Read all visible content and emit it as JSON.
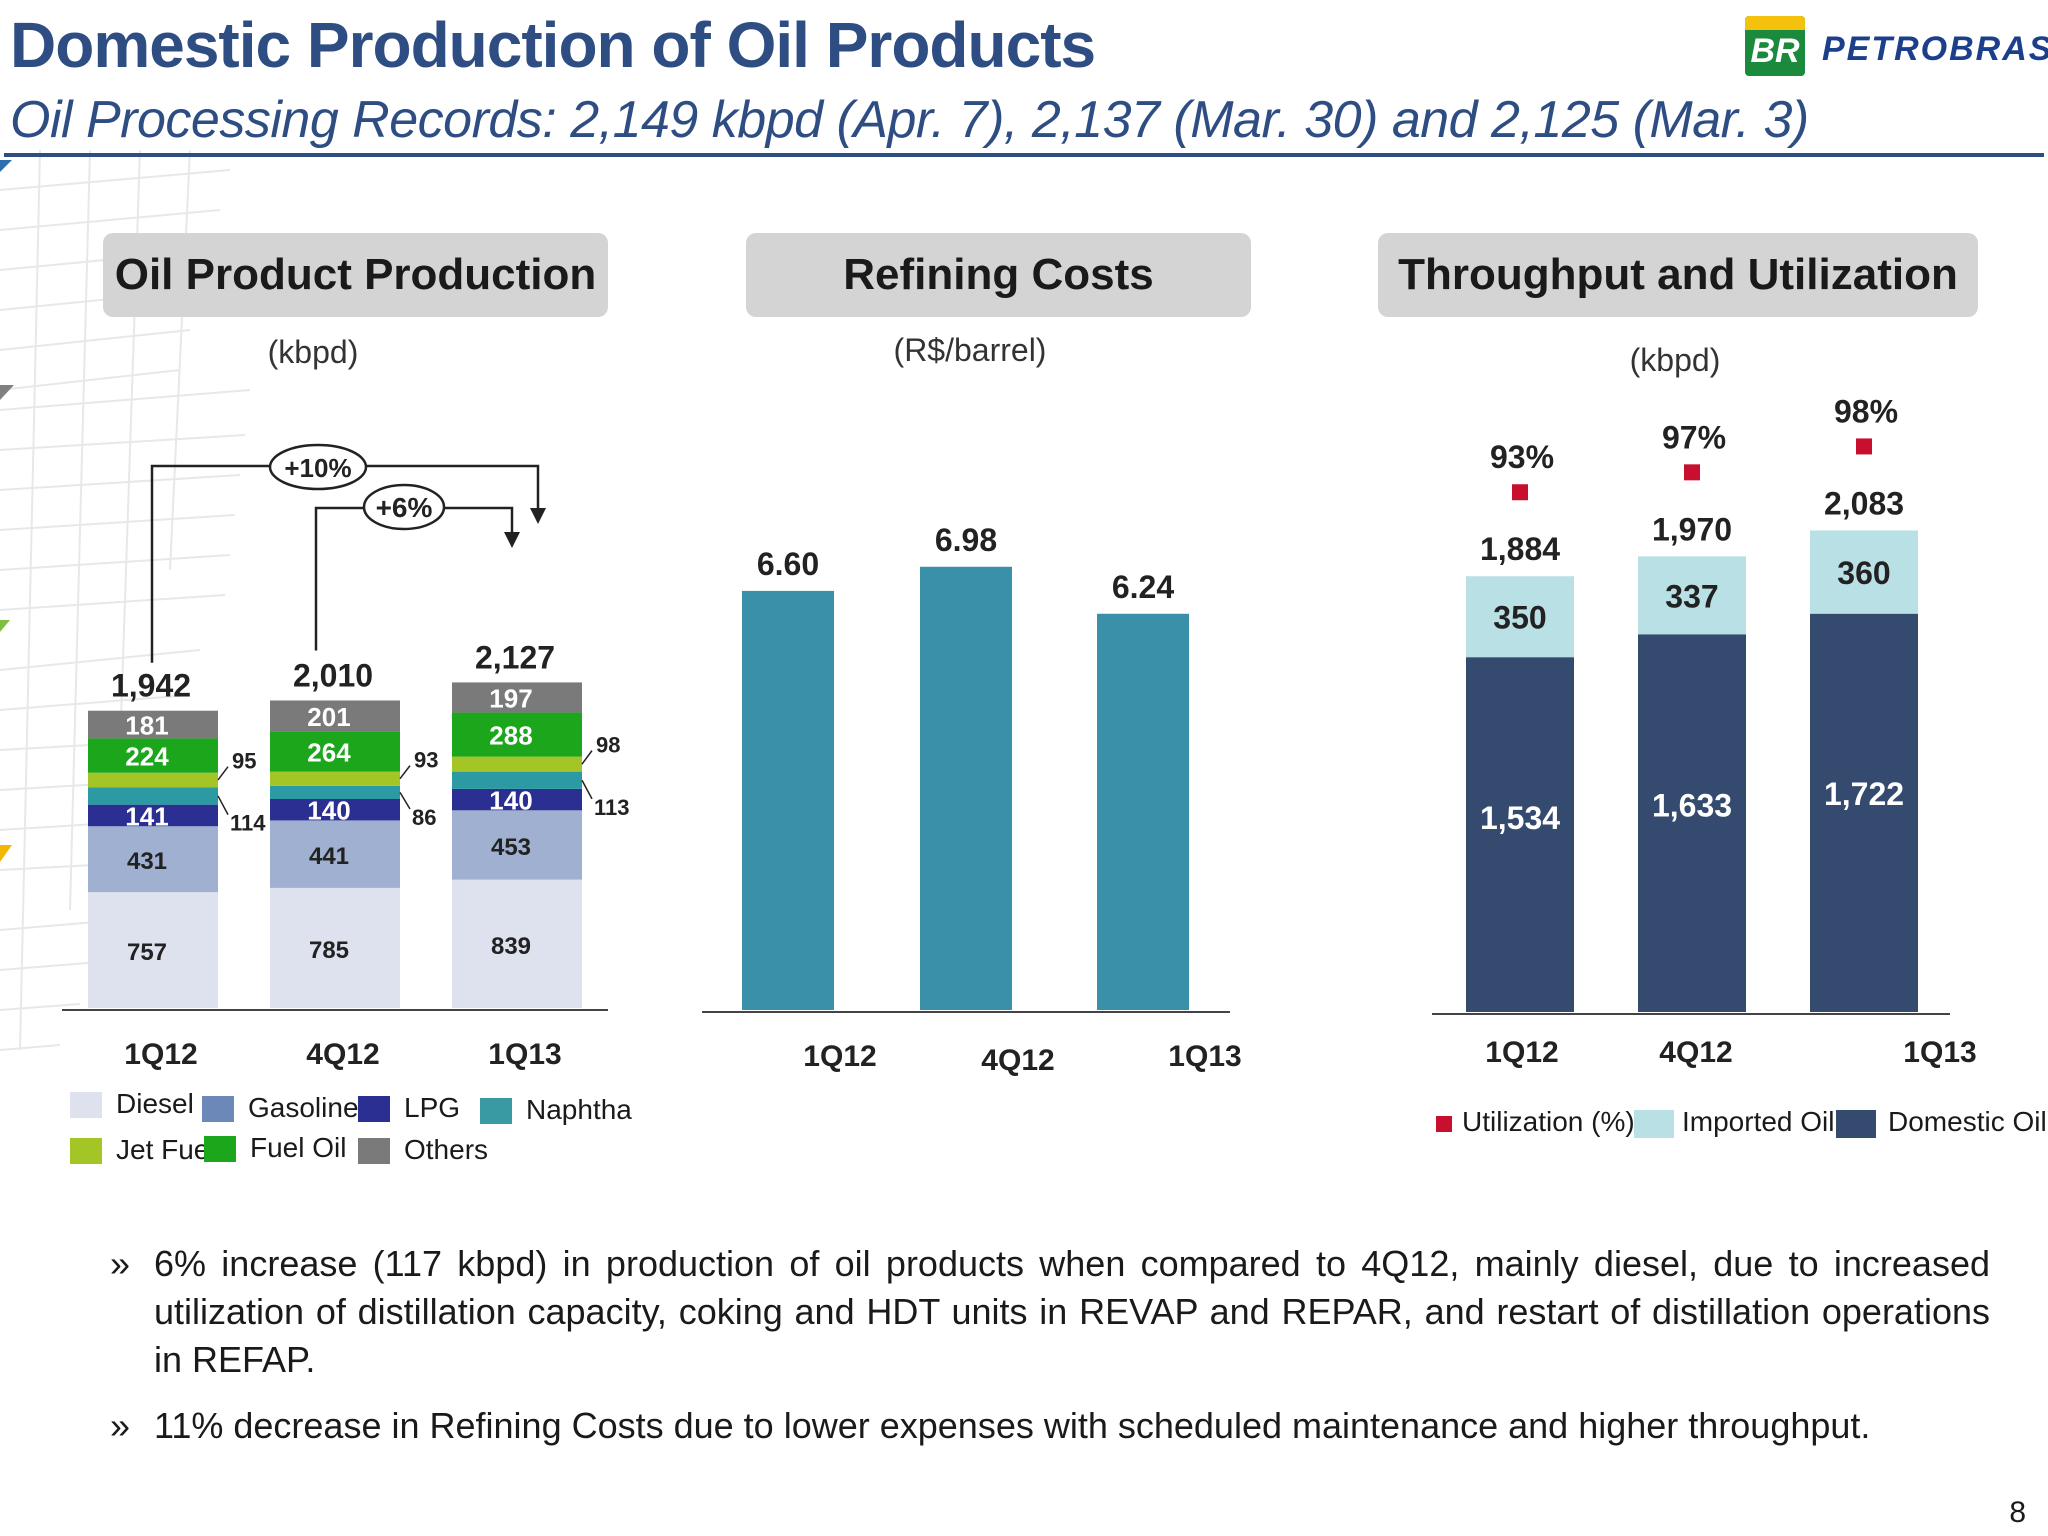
{
  "header": {
    "title": "Domestic Production of Oil Products",
    "subtitle": "Oil Processing Records: 2,149 kbpd (Apr. 7), 2,137 (Mar. 30) and 2,125 (Mar. 3)",
    "logo_mark": "BR",
    "logo_text": "PETROBRAS"
  },
  "panels": [
    {
      "title": "Oil Product Production",
      "unit": "(kbpd)"
    },
    {
      "title": "Refining Costs",
      "unit": "(R$/barrel)"
    },
    {
      "title": "Throughput and Utilization",
      "unit": "(kbpd)"
    }
  ],
  "chart_data": [
    {
      "type": "bar",
      "stacked": true,
      "categories": [
        "1Q12",
        "4Q12",
        "1Q13"
      ],
      "series": [
        {
          "name": "Diesel",
          "color": "#dde2ee",
          "values": [
            757,
            785,
            839
          ]
        },
        {
          "name": "Gasoline",
          "color": "#9fb0d0",
          "values": [
            431,
            441,
            453
          ]
        },
        {
          "name": "LPG",
          "color": "#2b2f92",
          "values": [
            141,
            140,
            140
          ]
        },
        {
          "name": "Naphtha",
          "color": "#2b9aa3",
          "values": [
            114,
            86,
            113
          ]
        },
        {
          "name": "Jet Fuel",
          "color": "#a4c526",
          "values": [
            95,
            93,
            98
          ]
        },
        {
          "name": "Fuel Oil",
          "color": "#1ca61c",
          "values": [
            224,
            264,
            288
          ]
        },
        {
          "name": "Others",
          "color": "#7a7a7a",
          "values": [
            181,
            201,
            197
          ]
        }
      ],
      "totals": [
        "1,942",
        "2,010",
        "2,127"
      ],
      "value_labels": [
        [
          "757",
          "431",
          "141",
          "114",
          "95",
          "224",
          "181"
        ],
        [
          "785",
          "441",
          "140",
          "86",
          "93",
          "264",
          "201"
        ],
        [
          "839",
          "453",
          "140",
          "113",
          "98",
          "288",
          "197"
        ]
      ],
      "annotations": [
        {
          "text": "+10%",
          "from": "1Q12",
          "to": "1Q13"
        },
        {
          "text": "+6%",
          "from": "4Q12",
          "to": "1Q13"
        }
      ],
      "legend": [
        "Diesel",
        "Gasoline",
        "LPG",
        "Naphtha",
        "Jet Fuel",
        "Fuel Oil",
        "Others"
      ]
    },
    {
      "type": "bar",
      "categories": [
        "1Q12",
        "4Q12",
        "1Q13"
      ],
      "values": [
        6.6,
        6.98,
        6.24
      ],
      "value_labels": [
        "6.60",
        "6.98",
        "6.24"
      ],
      "color": "#3a90a8"
    },
    {
      "type": "bar",
      "stacked": true,
      "categories": [
        "1Q12",
        "4Q12",
        "1Q13"
      ],
      "series": [
        {
          "name": "Domestic Oil",
          "color": "#344a6e",
          "values": [
            1534,
            1633,
            1722
          ],
          "labels": [
            "1,534",
            "1,633",
            "1,722"
          ]
        },
        {
          "name": "Imported Oil",
          "color": "#b9e0e5",
          "values": [
            350,
            337,
            360
          ],
          "labels": [
            "350",
            "337",
            "360"
          ]
        }
      ],
      "totals": [
        "1,884",
        "1,970",
        "2,083"
      ],
      "utilization": {
        "name": "Utilization (%)",
        "color": "#c8102e",
        "values": [
          93,
          97,
          98
        ],
        "labels": [
          "93%",
          "97%",
          "98%"
        ]
      },
      "legend": [
        "Utilization (%)",
        "Imported Oil",
        "Domestic Oil"
      ]
    }
  ],
  "bullets": [
    "6% increase (117 kbpd) in production of oil products when compared to 4Q12, mainly diesel, due to increased utilization of distillation capacity, coking and HDT units in REVAP and REPAR, and restart of distillation operations in REFAP.",
    "11% decrease in Refining Costs due to lower expenses with scheduled maintenance and higher throughput."
  ],
  "bullet_marker": "»",
  "page_number": "8"
}
